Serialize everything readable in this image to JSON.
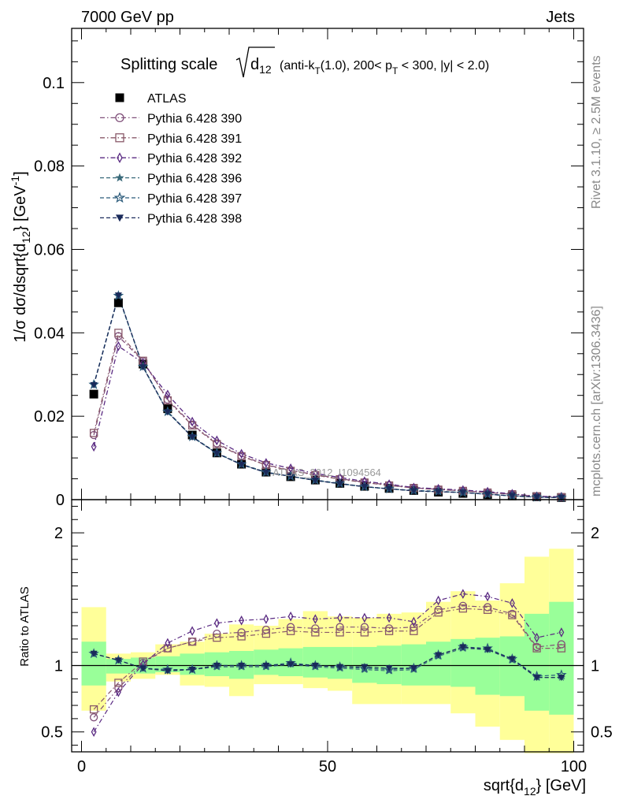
{
  "header": {
    "left": "7000 GeV pp",
    "right": "Jets"
  },
  "side_labels": {
    "top": "Rivet 3.1.10, ≥ 2.5M events",
    "bottom": "mcplots.cern.ch [arXiv:1306.3436]"
  },
  "title": {
    "prefix": "Splitting scale",
    "radicand": "d",
    "radicand_sub": "12",
    "details": "(anti-k",
    "details_sub": "T",
    "details_rest": "(1.0), 200< p",
    "pt_sub": "T",
    "details_end": " < 300, |y| < 2.0)"
  },
  "watermark": "ATLAS_2012_I1094564",
  "xlabel": {
    "main": "sqrt{d",
    "sub": "12",
    "end": "} [GeV]"
  },
  "ylabel_top": {
    "main": "1/σ dσ/dsqrt{d",
    "sub": "12",
    "mid": "} [GeV",
    "sup": "-1",
    "end": "]"
  },
  "ylabel_bottom": "Ratio to ATLAS",
  "chart_data": [
    {
      "type": "line",
      "panel": "main",
      "xlim": [
        -2,
        102
      ],
      "ylim": [
        0,
        0.113
      ],
      "x_ticks": [
        0,
        50,
        100
      ],
      "x_tick_labels": [
        "0",
        "50",
        "100"
      ],
      "y_ticks": [
        0,
        0.02,
        0.04,
        0.06,
        0.08,
        0.1
      ],
      "y_tick_labels": [
        "0",
        "0.02",
        "0.04",
        "0.06",
        "0.08",
        "0.1"
      ],
      "x": [
        2.5,
        7.5,
        12.5,
        17.5,
        22.5,
        27.5,
        32.5,
        37.5,
        42.5,
        47.5,
        52.5,
        57.5,
        62.5,
        67.5,
        72.5,
        77.5,
        82.5,
        87.5,
        92.5,
        97.5
      ],
      "legend_position": "top-left",
      "series": [
        {
          "name": "ATLAS",
          "color": "#000000",
          "marker": "square-filled",
          "line": "none",
          "values": [
            0.0253,
            0.0472,
            0.0325,
            0.0218,
            0.0155,
            0.0112,
            0.0085,
            0.0066,
            0.0055,
            0.0047,
            0.0039,
            0.0032,
            0.0027,
            0.0022,
            0.0018,
            0.0015,
            0.0012,
            0.0009,
            0.0007,
            0.0005
          ]
        },
        {
          "name": "Pythia 6.428 390",
          "color": "#80507a",
          "marker": "circle-open",
          "line": "dashdot",
          "values": [
            0.0155,
            0.0392,
            0.0332,
            0.024,
            0.018,
            0.0135,
            0.0105,
            0.0084,
            0.007,
            0.006,
            0.005,
            0.0042,
            0.0035,
            0.0028,
            0.0025,
            0.0021,
            0.0017,
            0.0013,
            0.0008,
            0.0006
          ]
        },
        {
          "name": "Pythia 6.428 391",
          "color": "#8a5a6a",
          "marker": "square-open",
          "line": "dashdot",
          "values": [
            0.016,
            0.04,
            0.0333,
            0.0238,
            0.0178,
            0.0133,
            0.0104,
            0.0083,
            0.0069,
            0.0059,
            0.0049,
            0.0041,
            0.0034,
            0.0028,
            0.0024,
            0.0021,
            0.0017,
            0.0013,
            0.0008,
            0.0006
          ]
        },
        {
          "name": "Pythia 6.428 392",
          "color": "#5a2a82",
          "marker": "diamond-open",
          "line": "dashdot",
          "values": [
            0.0127,
            0.0368,
            0.0328,
            0.0252,
            0.0187,
            0.0142,
            0.011,
            0.0088,
            0.0075,
            0.0063,
            0.0053,
            0.0044,
            0.0037,
            0.0029,
            0.0026,
            0.0023,
            0.0019,
            0.0014,
            0.0008,
            0.0007
          ]
        },
        {
          "name": "Pythia 6.428 396",
          "color": "#3a6a7a",
          "marker": "star-filled",
          "line": "dashed",
          "values": [
            0.0275,
            0.0488,
            0.0318,
            0.021,
            0.015,
            0.0111,
            0.0084,
            0.0065,
            0.0056,
            0.0046,
            0.0038,
            0.0031,
            0.0026,
            0.0021,
            0.0019,
            0.0017,
            0.0013,
            0.0009,
            0.0006,
            0.0005
          ]
        },
        {
          "name": "Pythia 6.428 397",
          "color": "#2a5a7a",
          "marker": "star-open",
          "line": "dashed",
          "values": [
            0.0276,
            0.0489,
            0.0319,
            0.0211,
            0.0151,
            0.0112,
            0.0085,
            0.0066,
            0.0056,
            0.0047,
            0.0039,
            0.0031,
            0.0026,
            0.0022,
            0.002,
            0.0017,
            0.0013,
            0.0009,
            0.0006,
            0.0005
          ]
        },
        {
          "name": "Pythia 6.428 398",
          "color": "#1a2a5a",
          "marker": "triangle-down-filled",
          "line": "dashed",
          "values": [
            0.0275,
            0.049,
            0.0318,
            0.021,
            0.015,
            0.0111,
            0.0084,
            0.0065,
            0.0056,
            0.0046,
            0.0038,
            0.0031,
            0.0026,
            0.0021,
            0.0019,
            0.0017,
            0.0013,
            0.0009,
            0.0006,
            0.0005
          ]
        }
      ]
    },
    {
      "type": "line",
      "panel": "ratio",
      "xlim": [
        -2,
        102
      ],
      "ylim": [
        0.35,
        2.25
      ],
      "y_ticks": [
        0.5,
        1,
        2
      ],
      "y_tick_labels": [
        "0.5",
        "1",
        "2"
      ],
      "reference_line": 1,
      "x": [
        2.5,
        7.5,
        12.5,
        17.5,
        22.5,
        27.5,
        32.5,
        37.5,
        42.5,
        47.5,
        52.5,
        57.5,
        62.5,
        67.5,
        72.5,
        77.5,
        82.5,
        87.5,
        92.5,
        97.5
      ],
      "bin_edges": [
        0,
        5,
        10,
        15,
        20,
        25,
        30,
        35,
        40,
        45,
        50,
        55,
        60,
        65,
        70,
        75,
        80,
        85,
        90,
        95,
        100
      ],
      "band_outer": {
        "color": "#ffff99",
        "low": [
          0.66,
          0.88,
          0.9,
          0.93,
          0.85,
          0.84,
          0.77,
          0.86,
          0.86,
          0.83,
          0.81,
          0.71,
          0.71,
          0.71,
          0.71,
          0.64,
          0.54,
          0.44,
          0.34,
          0.34
        ],
        "high": [
          1.44,
          1.09,
          1.1,
          1.16,
          1.18,
          1.24,
          1.31,
          1.3,
          1.35,
          1.41,
          1.37,
          1.36,
          1.39,
          1.4,
          1.48,
          1.56,
          1.49,
          1.62,
          1.82,
          1.88
        ]
      },
      "band_inner": {
        "color": "#99ff99",
        "low": [
          0.85,
          0.94,
          0.94,
          0.95,
          0.93,
          0.92,
          0.9,
          0.93,
          0.92,
          0.91,
          0.9,
          0.87,
          0.86,
          0.85,
          0.85,
          0.84,
          0.78,
          0.77,
          0.66,
          0.63
        ],
        "high": [
          1.18,
          1.05,
          1.06,
          1.07,
          1.09,
          1.1,
          1.11,
          1.12,
          1.13,
          1.14,
          1.14,
          1.14,
          1.15,
          1.16,
          1.18,
          1.2,
          1.21,
          1.22,
          1.39,
          1.48
        ]
      },
      "series": [
        {
          "name": "Pythia 6.428 390",
          "values": [
            0.61,
            0.83,
            1.02,
            1.13,
            1.18,
            1.24,
            1.25,
            1.27,
            1.29,
            1.28,
            1.29,
            1.29,
            1.28,
            1.29,
            1.42,
            1.45,
            1.44,
            1.39,
            1.14,
            1.16
          ]
        },
        {
          "name": "Pythia 6.428 391",
          "values": [
            0.67,
            0.87,
            1.03,
            1.13,
            1.18,
            1.21,
            1.22,
            1.24,
            1.26,
            1.25,
            1.25,
            1.25,
            1.26,
            1.26,
            1.4,
            1.43,
            1.42,
            1.38,
            1.13,
            1.13
          ]
        },
        {
          "name": "Pythia 6.428 392",
          "values": [
            0.5,
            0.8,
            1.01,
            1.17,
            1.26,
            1.32,
            1.34,
            1.35,
            1.37,
            1.35,
            1.36,
            1.36,
            1.36,
            1.33,
            1.49,
            1.54,
            1.52,
            1.47,
            1.21,
            1.25
          ]
        },
        {
          "name": "Pythia 6.428 396",
          "values": [
            1.09,
            1.04,
            0.98,
            0.96,
            0.97,
            0.99,
            0.99,
            0.99,
            1.01,
            0.99,
            0.98,
            0.97,
            0.96,
            0.97,
            1.07,
            1.13,
            1.12,
            1.04,
            0.91,
            0.91
          ]
        },
        {
          "name": "Pythia 6.428 397",
          "values": [
            1.09,
            1.04,
            0.98,
            0.97,
            0.97,
            1.0,
            1.0,
            1.0,
            1.02,
            1.0,
            0.99,
            0.98,
            0.97,
            0.98,
            1.08,
            1.14,
            1.13,
            1.05,
            0.92,
            0.93
          ]
        },
        {
          "name": "Pythia 6.428 398",
          "values": [
            1.09,
            1.04,
            0.98,
            0.96,
            0.97,
            1.0,
            1.0,
            1.0,
            1.01,
            1.0,
            0.99,
            0.99,
            0.98,
            0.98,
            1.08,
            1.14,
            1.12,
            1.05,
            0.91,
            0.91
          ]
        }
      ]
    }
  ]
}
